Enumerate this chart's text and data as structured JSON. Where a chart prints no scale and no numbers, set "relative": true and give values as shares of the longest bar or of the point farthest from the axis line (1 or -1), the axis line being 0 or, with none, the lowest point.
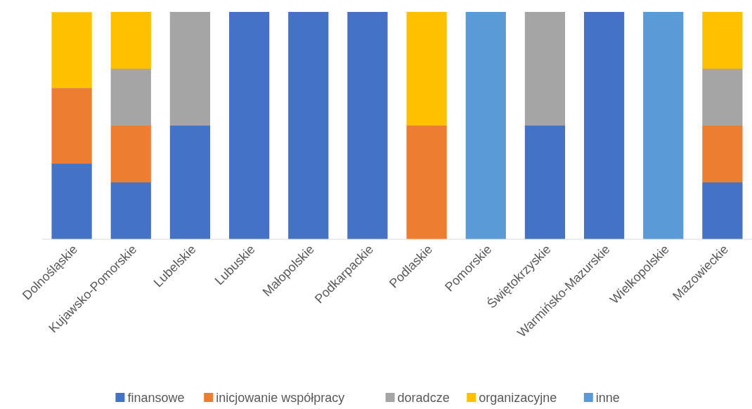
{
  "chart_data": {
    "type": "bar",
    "stacked": true,
    "relative": true,
    "legend": "bottom",
    "categories": [
      "Dolnośląskie",
      "Kujawsko-Pomorskie",
      "Lubelskie",
      "Lubuskie",
      "Małopolskie",
      "Podkarpackie",
      "Podlaskie",
      "Pomorskie",
      "Świętokrzyskie",
      "Warmińsko-Mazurskie",
      "Wielkopolskie",
      "Mazowieckie"
    ],
    "series": [
      {
        "name": "finansowe",
        "color": "#4472c4",
        "values": [
          0.333,
          0.25,
          0.5,
          1,
          1,
          1,
          null,
          null,
          0.5,
          1,
          null,
          0.25
        ]
      },
      {
        "name": "inicjowanie współpracy",
        "color": "#ed7d31",
        "values": [
          0.333,
          0.25,
          null,
          null,
          null,
          null,
          0.5,
          null,
          null,
          null,
          null,
          0.25
        ]
      },
      {
        "name": "doradcze",
        "color": "#a5a5a5",
        "values": [
          null,
          0.25,
          0.5,
          null,
          null,
          null,
          null,
          null,
          0.5,
          null,
          null,
          0.25
        ]
      },
      {
        "name": "organizacyjne",
        "color": "#ffc000",
        "values": [
          0.333,
          0.25,
          null,
          null,
          null,
          null,
          0.5,
          null,
          null,
          null,
          null,
          0.25
        ]
      },
      {
        "name": "inne",
        "color": "#5b9bd5",
        "values": [
          null,
          null,
          null,
          null,
          null,
          null,
          null,
          1,
          null,
          null,
          1,
          null
        ]
      }
    ]
  }
}
